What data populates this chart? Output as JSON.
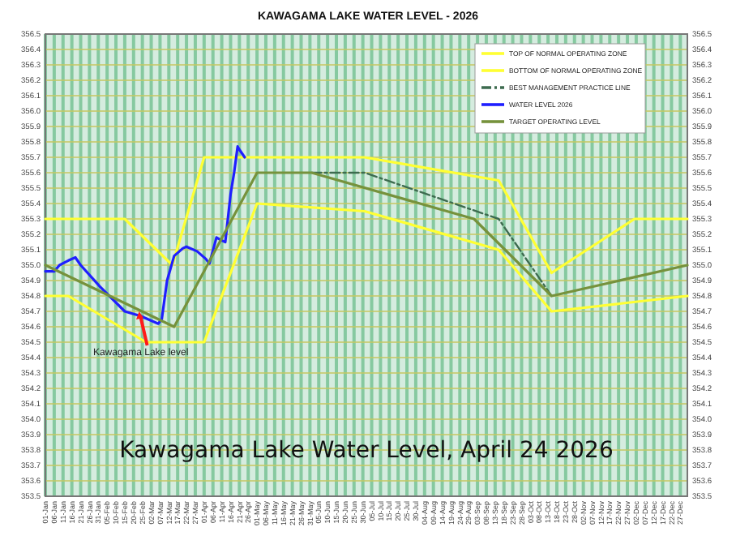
{
  "chart_data": {
    "type": "line",
    "title": "KAWAGAMA LAKE WATER LEVEL - 2026",
    "annotations": [
      "Kawagama Lake level",
      "Kawagama Lake Water Level, April 24 2026"
    ],
    "xlim": [
      "2026-01-01",
      "2026-12-31"
    ],
    "xticks": [
      {
        "value": "2026-01-01",
        "label": "01-Jan"
      },
      {
        "value": "2026-01-06",
        "label": "06-Jan"
      },
      {
        "value": "2026-01-11",
        "label": "11-Jan"
      },
      {
        "value": "2026-01-16",
        "label": "16-Jan"
      },
      {
        "value": "2026-01-21",
        "label": "21-Jan"
      },
      {
        "value": "2026-01-26",
        "label": "26-Jan"
      },
      {
        "value": "2026-01-31",
        "label": "31-Jan"
      },
      {
        "value": "2026-02-05",
        "label": "05-Feb"
      },
      {
        "value": "2026-02-10",
        "label": "10-Feb"
      },
      {
        "value": "2026-02-15",
        "label": "15-Feb"
      },
      {
        "value": "2026-02-20",
        "label": "20-Feb"
      },
      {
        "value": "2026-02-25",
        "label": "25-Feb"
      },
      {
        "value": "2026-03-02",
        "label": "02-Mar"
      },
      {
        "value": "2026-03-07",
        "label": "07-Mar"
      },
      {
        "value": "2026-03-12",
        "label": "12-Mar"
      },
      {
        "value": "2026-03-17",
        "label": "17-Mar"
      },
      {
        "value": "2026-03-22",
        "label": "22-Mar"
      },
      {
        "value": "2026-03-27",
        "label": "27-Mar"
      },
      {
        "value": "2026-04-01",
        "label": "01-Apr"
      },
      {
        "value": "2026-04-06",
        "label": "06-Apr"
      },
      {
        "value": "2026-04-11",
        "label": "11-Apr"
      },
      {
        "value": "2026-04-16",
        "label": "16-Apr"
      },
      {
        "value": "2026-04-21",
        "label": "21-Apr"
      },
      {
        "value": "2026-04-26",
        "label": "26-Apr"
      },
      {
        "value": "2026-05-01",
        "label": "01-May"
      },
      {
        "value": "2026-05-06",
        "label": "06-May"
      },
      {
        "value": "2026-05-11",
        "label": "11-May"
      },
      {
        "value": "2026-05-16",
        "label": "16-May"
      },
      {
        "value": "2026-05-21",
        "label": "21-May"
      },
      {
        "value": "2026-05-26",
        "label": "26-May"
      },
      {
        "value": "2026-05-31",
        "label": "31-May"
      },
      {
        "value": "2026-06-05",
        "label": "05-Jun"
      },
      {
        "value": "2026-06-10",
        "label": "10-Jun"
      },
      {
        "value": "2026-06-15",
        "label": "15-Jun"
      },
      {
        "value": "2026-06-20",
        "label": "20-Jun"
      },
      {
        "value": "2026-06-25",
        "label": "25-Jun"
      },
      {
        "value": "2026-06-30",
        "label": "30-Jun"
      },
      {
        "value": "2026-07-05",
        "label": "05-Jul"
      },
      {
        "value": "2026-07-10",
        "label": "10-Jul"
      },
      {
        "value": "2026-07-15",
        "label": "15-Jul"
      },
      {
        "value": "2026-07-20",
        "label": "20-Jul"
      },
      {
        "value": "2026-07-25",
        "label": "25-Jul"
      },
      {
        "value": "2026-07-30",
        "label": "30-Jul"
      },
      {
        "value": "2026-08-04",
        "label": "04-Aug"
      },
      {
        "value": "2026-08-09",
        "label": "09-Aug"
      },
      {
        "value": "2026-08-14",
        "label": "14-Aug"
      },
      {
        "value": "2026-08-19",
        "label": "19-Aug"
      },
      {
        "value": "2026-08-24",
        "label": "24-Aug"
      },
      {
        "value": "2026-08-29",
        "label": "29-Aug"
      },
      {
        "value": "2026-09-03",
        "label": "03-Sep"
      },
      {
        "value": "2026-09-08",
        "label": "08-Sep"
      },
      {
        "value": "2026-09-13",
        "label": "13-Sep"
      },
      {
        "value": "2026-09-18",
        "label": "18-Sep"
      },
      {
        "value": "2026-09-23",
        "label": "23-Sep"
      },
      {
        "value": "2026-09-28",
        "label": "28-Sep"
      },
      {
        "value": "2026-10-03",
        "label": "03-Oct"
      },
      {
        "value": "2026-10-08",
        "label": "08-Oct"
      },
      {
        "value": "2026-10-13",
        "label": "13-Oct"
      },
      {
        "value": "2026-10-18",
        "label": "18-Oct"
      },
      {
        "value": "2026-10-23",
        "label": "23-Oct"
      },
      {
        "value": "2026-10-28",
        "label": "28-Oct"
      },
      {
        "value": "2026-11-02",
        "label": "02-Nov"
      },
      {
        "value": "2026-11-07",
        "label": "07-Nov"
      },
      {
        "value": "2026-11-12",
        "label": "12-Nov"
      },
      {
        "value": "2026-11-17",
        "label": "17-Nov"
      },
      {
        "value": "2026-11-22",
        "label": "22-Nov"
      },
      {
        "value": "2026-11-27",
        "label": "27-Nov"
      },
      {
        "value": "2026-12-02",
        "label": "02-Dec"
      },
      {
        "value": "2026-12-07",
        "label": "07-Dec"
      },
      {
        "value": "2026-12-12",
        "label": "12-Dec"
      },
      {
        "value": "2026-12-17",
        "label": "17-Dec"
      },
      {
        "value": "2026-12-22",
        "label": "22-Dec"
      },
      {
        "value": "2026-12-27",
        "label": "27-Dec"
      }
    ],
    "ylim": [
      353.5,
      356.5
    ],
    "yticks": [
      353.5,
      353.6,
      353.7,
      353.8,
      353.9,
      {
        "value": 354,
        "label": "354.0"
      },
      354.1,
      354.2,
      354.3,
      354.4,
      354.5,
      354.6,
      354.7,
      354.8,
      354.9,
      {
        "value": 355,
        "label": "355.0"
      },
      355.1,
      355.2,
      355.3,
      355.4,
      355.5,
      355.6,
      355.7,
      355.8,
      355.9,
      {
        "value": 356,
        "label": "356.0"
      },
      356.1,
      356.2,
      356.3,
      356.4,
      356.5
    ],
    "y2lim": [
      353.5,
      356.5
    ],
    "y2ticks": [
      353.5,
      353.6,
      353.7,
      353.8,
      353.9,
      {
        "value": 354,
        "label": "354.0"
      },
      354.1,
      354.2,
      354.3,
      354.4,
      354.5,
      354.6,
      354.7,
      354.8,
      354.9,
      {
        "value": 355,
        "label": "355.0"
      },
      355.1,
      355.2,
      355.3,
      355.4,
      355.5,
      355.6,
      355.7,
      355.8,
      355.9,
      {
        "value": 356,
        "label": "356.0"
      },
      356.1,
      356.2,
      356.3,
      356.4,
      356.5
    ],
    "grid": true,
    "legend": "top right",
    "marker": "none",
    "series": [
      {
        "name": "TOP OF NORMAL OPERATING ZONE",
        "color": "#ffff33",
        "x": [
          "2026-01-01",
          "2026-02-15",
          "2026-03-14",
          "2026-04-01",
          "2026-07-01",
          "2026-09-15",
          "2026-10-15",
          "2026-12-01",
          "2026-12-31"
        ],
        "values": [
          355.3,
          355.3,
          355.0,
          355.7,
          355.7,
          355.55,
          354.95,
          355.3,
          355.3
        ]
      },
      {
        "name": "BOTTOM OF NORMAL OPERATING ZONE",
        "color": "#ffff33",
        "x": [
          "2026-01-01",
          "2026-01-14",
          "2026-02-27",
          "2026-04-01",
          "2026-05-01",
          "2026-07-01",
          "2026-09-15",
          "2026-10-15",
          "2026-12-31"
        ],
        "values": [
          354.8,
          354.8,
          354.5,
          354.5,
          355.4,
          355.35,
          355.1,
          354.7,
          354.8
        ]
      },
      {
        "name": "BEST MANAGEMENT PRACTICE LINE",
        "color": "#3d6b4f",
        "line_style": "dashed",
        "x": [
          "2026-06-01",
          "2026-07-01",
          "2026-09-15",
          "2026-10-15"
        ],
        "values": [
          355.6,
          355.6,
          355.3,
          354.8
        ]
      },
      {
        "name": "WATER  LEVEL 2026",
        "color": "#1f1fff",
        "x": [
          "2026-01-01",
          "2026-01-06",
          "2026-01-09",
          "2026-01-14",
          "2026-01-18",
          "2026-01-21",
          "2026-02-01",
          "2026-02-15",
          "2026-02-24",
          "2026-03-06",
          "2026-03-08",
          "2026-03-11",
          "2026-03-15",
          "2026-03-20",
          "2026-03-22",
          "2026-03-28",
          "2026-04-02",
          "2026-04-04",
          "2026-04-08",
          "2026-04-11",
          "2026-04-13",
          "2026-04-16",
          "2026-04-18",
          "2026-04-20",
          "2026-04-21",
          "2026-04-24"
        ],
        "values": [
          354.96,
          354.96,
          355.0,
          355.03,
          355.05,
          355.0,
          354.86,
          354.7,
          354.67,
          354.62,
          354.65,
          354.9,
          355.06,
          355.11,
          355.12,
          355.09,
          355.04,
          355.01,
          355.18,
          355.16,
          355.15,
          355.46,
          355.6,
          355.77,
          355.75,
          355.7
        ]
      },
      {
        "name": "TARGET OPERATING  LEVEL",
        "color": "#76923c",
        "x": [
          "2026-01-01",
          "2026-03-15",
          "2026-05-01",
          "2026-06-01",
          "2026-09-01",
          "2026-10-15",
          "2026-12-31"
        ],
        "values": [
          355.0,
          354.6,
          355.6,
          355.6,
          355.3,
          354.8,
          355.0
        ]
      }
    ]
  }
}
